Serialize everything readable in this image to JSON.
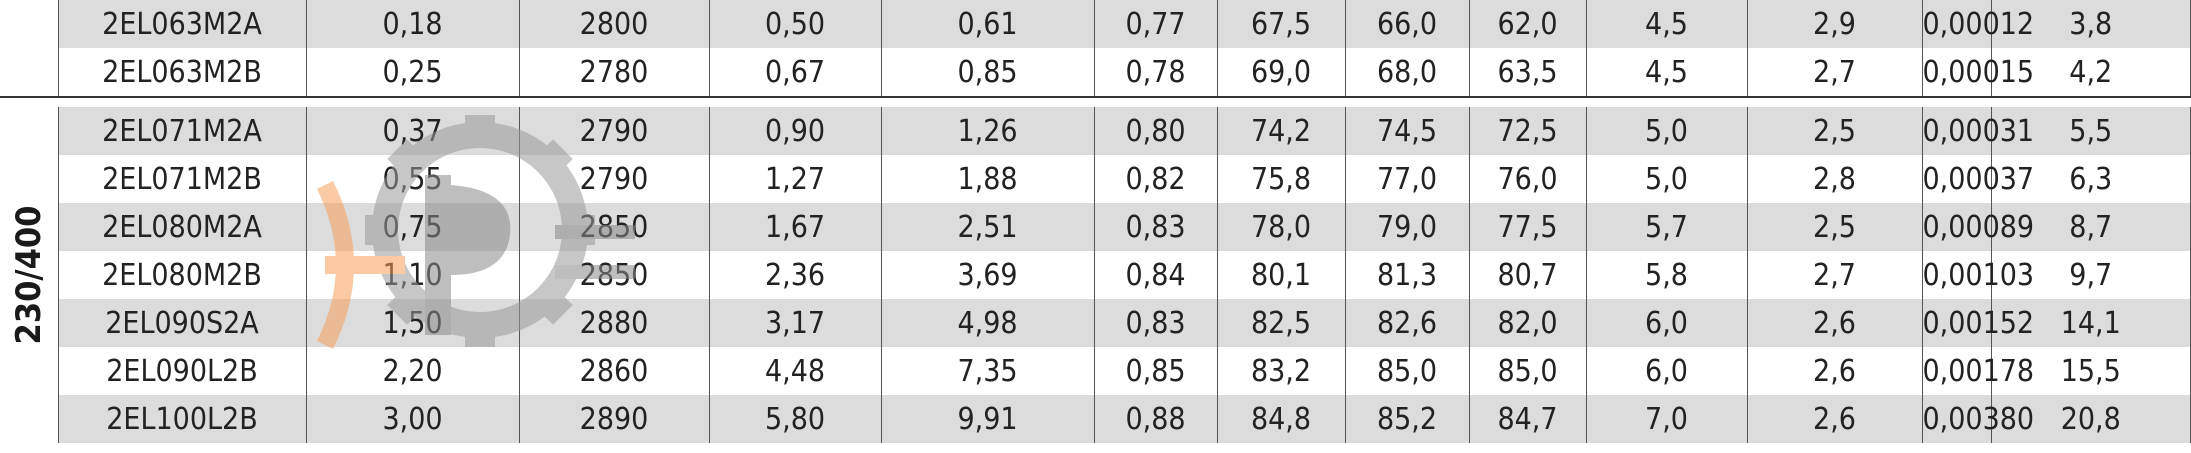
{
  "voltage_group_label": "230/400",
  "group_a": [
    [
      "2EL063M2A",
      "0,18",
      "2800",
      "0,50",
      "0,61",
      "0,77",
      "67,5",
      "66,0",
      "62,0",
      "4,5",
      "2,9",
      "0,00012",
      "3,8"
    ],
    [
      "2EL063M2B",
      "0,25",
      "2780",
      "0,67",
      "0,85",
      "0,78",
      "69,0",
      "68,0",
      "63,5",
      "4,5",
      "2,7",
      "0,00015",
      "4,2"
    ]
  ],
  "group_b": [
    [
      "2EL071M2A",
      "0,37",
      "2790",
      "0,90",
      "1,26",
      "0,80",
      "74,2",
      "74,5",
      "72,5",
      "5,0",
      "2,5",
      "0,00031",
      "5,5"
    ],
    [
      "2EL071M2B",
      "0,55",
      "2790",
      "1,27",
      "1,88",
      "0,82",
      "75,8",
      "77,0",
      "76,0",
      "5,0",
      "2,8",
      "0,00037",
      "6,3"
    ],
    [
      "2EL080M2A",
      "0,75",
      "2850",
      "1,67",
      "2,51",
      "0,83",
      "78,0",
      "79,0",
      "77,5",
      "5,7",
      "2,5",
      "0,00089",
      "8,7"
    ],
    [
      "2EL080M2B",
      "1,10",
      "2850",
      "2,36",
      "3,69",
      "0,84",
      "80,1",
      "81,3",
      "80,7",
      "5,8",
      "2,7",
      "0,00103",
      "9,7"
    ],
    [
      "2EL090S2A",
      "1,50",
      "2880",
      "3,17",
      "4,98",
      "0,83",
      "82,5",
      "82,6",
      "82,0",
      "6,0",
      "2,6",
      "0,00152",
      "14,1"
    ],
    [
      "2EL090L2B",
      "2,20",
      "2860",
      "4,48",
      "7,35",
      "0,85",
      "83,2",
      "85,0",
      "85,0",
      "6,0",
      "2,6",
      "0,00178",
      "15,5"
    ],
    [
      "2EL100L2B",
      "3,00",
      "2890",
      "5,80",
      "9,91",
      "0,88",
      "84,8",
      "85,2",
      "84,7",
      "7,0",
      "2,6",
      "0,00380",
      "20,8"
    ]
  ],
  "colors": {
    "row_shade": "#dcdcdc",
    "watermark_orange": "#f5a05a",
    "watermark_gray": "#9a9a9a"
  }
}
